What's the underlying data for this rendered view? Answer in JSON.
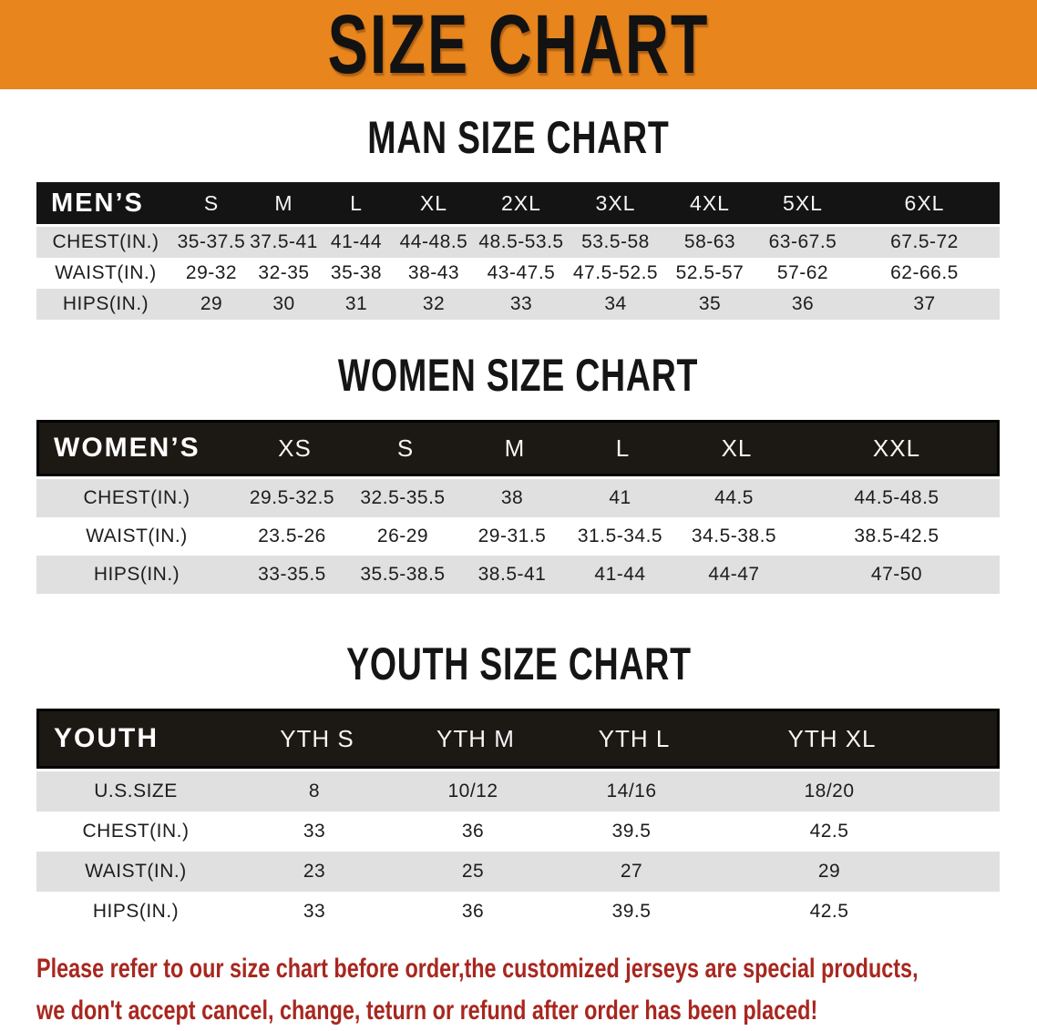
{
  "banner": {
    "title": "SIZE CHART",
    "bg_color": "#e8861d"
  },
  "sections": [
    {
      "title": "MAN SIZE CHART",
      "table": {
        "header_label": "MEN’S",
        "columns": [
          "S",
          "M",
          "L",
          "XL",
          "2XL",
          "3XL",
          "4XL",
          "5XL",
          "6XL"
        ],
        "rows": [
          {
            "label": "CHEST(IN.)",
            "values": [
              "35-37.5",
              "37.5-41",
              "41-44",
              "44-48.5",
              "48.5-53.5",
              "53.5-58",
              "58-63",
              "63-67.5",
              "67.5-72"
            ]
          },
          {
            "label": "WAIST(IN.)",
            "values": [
              "29-32",
              "32-35",
              "35-38",
              "38-43",
              "43-47.5",
              "47.5-52.5",
              "52.5-57",
              "57-62",
              "62-66.5"
            ]
          },
          {
            "label": "HIPS(IN.)",
            "values": [
              "29",
              "30",
              "31",
              "32",
              "33",
              "34",
              "35",
              "36",
              "37"
            ]
          }
        ]
      }
    },
    {
      "title": "WOMEN SIZE CHART",
      "table": {
        "header_label": "WOMEN’S",
        "columns": [
          "XS",
          "S",
          "M",
          "L",
          "XL",
          "XXL"
        ],
        "rows": [
          {
            "label": "CHEST(IN.)",
            "values": [
              "29.5-32.5",
              "32.5-35.5",
              "38",
              "41",
              "44.5",
              "44.5-48.5"
            ]
          },
          {
            "label": "WAIST(IN.)",
            "values": [
              "23.5-26",
              "26-29",
              "29-31.5",
              "31.5-34.5",
              "34.5-38.5",
              "38.5-42.5"
            ]
          },
          {
            "label": "HIPS(IN.)",
            "values": [
              "33-35.5",
              "35.5-38.5",
              "38.5-41",
              "41-44",
              "44-47",
              "47-50"
            ]
          }
        ]
      }
    },
    {
      "title": "YOUTH SIZE CHART",
      "table": {
        "header_label": "YOUTH",
        "columns": [
          "YTH S",
          "YTH M",
          "YTH L",
          "YTH XL"
        ],
        "rows": [
          {
            "label": "U.S.SIZE",
            "values": [
              "8",
              "10/12",
              "14/16",
              "18/20"
            ]
          },
          {
            "label": "CHEST(IN.)",
            "values": [
              "33",
              "36",
              "39.5",
              "42.5"
            ]
          },
          {
            "label": "WAIST(IN.)",
            "values": [
              "23",
              "25",
              "27",
              "29"
            ]
          },
          {
            "label": "HIPS(IN.)",
            "values": [
              "33",
              "36",
              "39.5",
              "42.5"
            ]
          }
        ]
      }
    }
  ],
  "footer": {
    "line1": "Please refer to our size chart before order,the customized jerseys are special products,",
    "line2": "we don't accept cancel, change, teturn or refund after order has been placed!",
    "text_color": "#a8271f"
  }
}
